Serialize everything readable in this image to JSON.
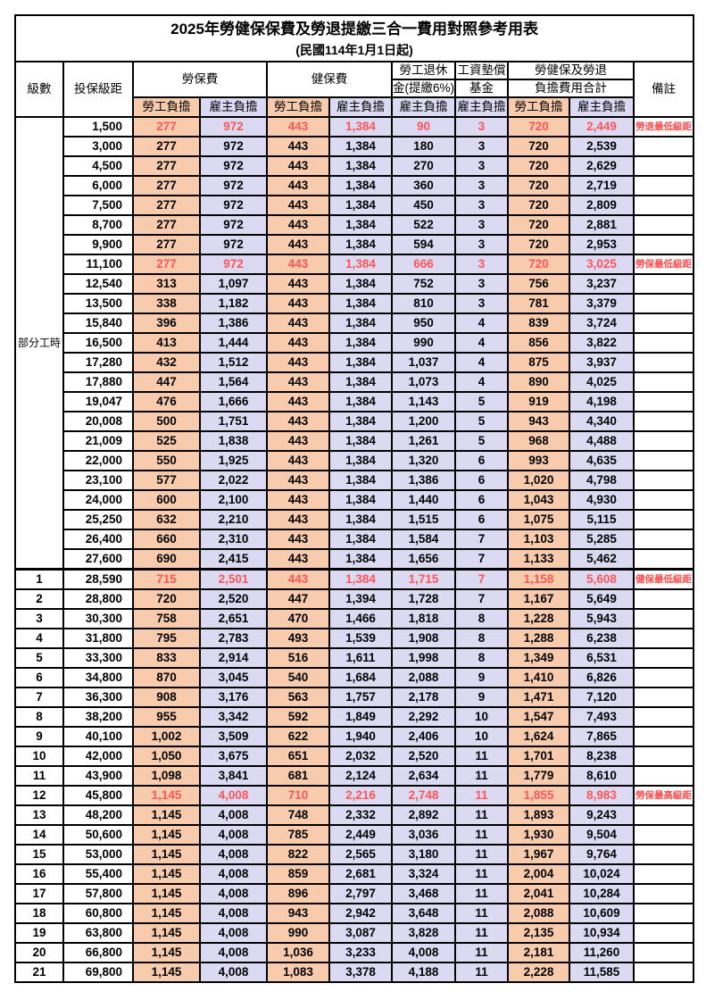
{
  "title": "2025年勞健保保費及勞退提繳三合一費用對照參考用表",
  "subtitle": "(民國114年1月1日起)",
  "colors": {
    "employee_col_bg": "#F8CBAD",
    "employer_col_bg": "#DCD9F2",
    "highlight_text": "#FF5555",
    "remark_text": "#FF4B4B",
    "grid_line": "#000000"
  },
  "header": {
    "grade": "級數",
    "bracket": "投保級距",
    "labor_insurance": "勞保費",
    "health_insurance": "健保費",
    "pension_line1": "勞工退休",
    "pension_line2": "金(提繳6%)",
    "wage_fund_line1": "工資墊償",
    "wage_fund_line2": "基金",
    "total_line1": "勞健保及勞退",
    "total_line2": "負擔費用合計",
    "remark": "備註",
    "employee_share": "勞工負擔",
    "employer_share": "雇主負擔"
  },
  "part_time_label": "部分工時",
  "part_time_rows": 23,
  "column_kinds": [
    "emp",
    "er",
    "emp",
    "er",
    "er",
    "er",
    "emp",
    "er"
  ],
  "rows": [
    {
      "grade": null,
      "bracket": "1,500",
      "values": [
        "277",
        "972",
        "443",
        "1,384",
        "90",
        "3",
        "720",
        "2,449"
      ],
      "remark": "勞退最低級距",
      "highlight": true
    },
    {
      "grade": null,
      "bracket": "3,000",
      "values": [
        "277",
        "972",
        "443",
        "1,384",
        "180",
        "3",
        "720",
        "2,539"
      ],
      "remark": "",
      "highlight": false
    },
    {
      "grade": null,
      "bracket": "4,500",
      "values": [
        "277",
        "972",
        "443",
        "1,384",
        "270",
        "3",
        "720",
        "2,629"
      ],
      "remark": "",
      "highlight": false
    },
    {
      "grade": null,
      "bracket": "6,000",
      "values": [
        "277",
        "972",
        "443",
        "1,384",
        "360",
        "3",
        "720",
        "2,719"
      ],
      "remark": "",
      "highlight": false
    },
    {
      "grade": null,
      "bracket": "7,500",
      "values": [
        "277",
        "972",
        "443",
        "1,384",
        "450",
        "3",
        "720",
        "2,809"
      ],
      "remark": "",
      "highlight": false
    },
    {
      "grade": null,
      "bracket": "8,700",
      "values": [
        "277",
        "972",
        "443",
        "1,384",
        "522",
        "3",
        "720",
        "2,881"
      ],
      "remark": "",
      "highlight": false
    },
    {
      "grade": null,
      "bracket": "9,900",
      "values": [
        "277",
        "972",
        "443",
        "1,384",
        "594",
        "3",
        "720",
        "2,953"
      ],
      "remark": "",
      "highlight": false
    },
    {
      "grade": null,
      "bracket": "11,100",
      "values": [
        "277",
        "972",
        "443",
        "1,384",
        "666",
        "3",
        "720",
        "3,025"
      ],
      "remark": "勞保最低級距",
      "highlight": true
    },
    {
      "grade": null,
      "bracket": "12,540",
      "values": [
        "313",
        "1,097",
        "443",
        "1,384",
        "752",
        "3",
        "756",
        "3,237"
      ],
      "remark": "",
      "highlight": false
    },
    {
      "grade": null,
      "bracket": "13,500",
      "values": [
        "338",
        "1,182",
        "443",
        "1,384",
        "810",
        "3",
        "781",
        "3,379"
      ],
      "remark": "",
      "highlight": false
    },
    {
      "grade": null,
      "bracket": "15,840",
      "values": [
        "396",
        "1,386",
        "443",
        "1,384",
        "950",
        "4",
        "839",
        "3,724"
      ],
      "remark": "",
      "highlight": false
    },
    {
      "grade": null,
      "bracket": "16,500",
      "values": [
        "413",
        "1,444",
        "443",
        "1,384",
        "990",
        "4",
        "856",
        "3,822"
      ],
      "remark": "",
      "highlight": false
    },
    {
      "grade": null,
      "bracket": "17,280",
      "values": [
        "432",
        "1,512",
        "443",
        "1,384",
        "1,037",
        "4",
        "875",
        "3,937"
      ],
      "remark": "",
      "highlight": false
    },
    {
      "grade": null,
      "bracket": "17,880",
      "values": [
        "447",
        "1,564",
        "443",
        "1,384",
        "1,073",
        "4",
        "890",
        "4,025"
      ],
      "remark": "",
      "highlight": false
    },
    {
      "grade": null,
      "bracket": "19,047",
      "values": [
        "476",
        "1,666",
        "443",
        "1,384",
        "1,143",
        "5",
        "919",
        "4,198"
      ],
      "remark": "",
      "highlight": false
    },
    {
      "grade": null,
      "bracket": "20,008",
      "values": [
        "500",
        "1,751",
        "443",
        "1,384",
        "1,200",
        "5",
        "943",
        "4,340"
      ],
      "remark": "",
      "highlight": false
    },
    {
      "grade": null,
      "bracket": "21,009",
      "values": [
        "525",
        "1,838",
        "443",
        "1,384",
        "1,261",
        "5",
        "968",
        "4,488"
      ],
      "remark": "",
      "highlight": false
    },
    {
      "grade": null,
      "bracket": "22,000",
      "values": [
        "550",
        "1,925",
        "443",
        "1,384",
        "1,320",
        "6",
        "993",
        "4,635"
      ],
      "remark": "",
      "highlight": false
    },
    {
      "grade": null,
      "bracket": "23,100",
      "values": [
        "577",
        "2,022",
        "443",
        "1,384",
        "1,386",
        "6",
        "1,020",
        "4,798"
      ],
      "remark": "",
      "highlight": false
    },
    {
      "grade": null,
      "bracket": "24,000",
      "values": [
        "600",
        "2,100",
        "443",
        "1,384",
        "1,440",
        "6",
        "1,043",
        "4,930"
      ],
      "remark": "",
      "highlight": false
    },
    {
      "grade": null,
      "bracket": "25,250",
      "values": [
        "632",
        "2,210",
        "443",
        "1,384",
        "1,515",
        "6",
        "1,075",
        "5,115"
      ],
      "remark": "",
      "highlight": false
    },
    {
      "grade": null,
      "bracket": "26,400",
      "values": [
        "660",
        "2,310",
        "443",
        "1,384",
        "1,584",
        "7",
        "1,103",
        "5,285"
      ],
      "remark": "",
      "highlight": false
    },
    {
      "grade": null,
      "bracket": "27,600",
      "values": [
        "690",
        "2,415",
        "443",
        "1,384",
        "1,656",
        "7",
        "1,133",
        "5,462"
      ],
      "remark": "",
      "highlight": false
    },
    {
      "grade": "1",
      "bracket": "28,590",
      "values": [
        "715",
        "2,501",
        "443",
        "1,384",
        "1,715",
        "7",
        "1,158",
        "5,608"
      ],
      "remark": "健保最低級距",
      "highlight": true,
      "section_start": true
    },
    {
      "grade": "2",
      "bracket": "28,800",
      "values": [
        "720",
        "2,520",
        "447",
        "1,394",
        "1,728",
        "7",
        "1,167",
        "5,649"
      ],
      "remark": "",
      "highlight": false
    },
    {
      "grade": "3",
      "bracket": "30,300",
      "values": [
        "758",
        "2,651",
        "470",
        "1,466",
        "1,818",
        "8",
        "1,228",
        "5,943"
      ],
      "remark": "",
      "highlight": false
    },
    {
      "grade": "4",
      "bracket": "31,800",
      "values": [
        "795",
        "2,783",
        "493",
        "1,539",
        "1,908",
        "8",
        "1,288",
        "6,238"
      ],
      "remark": "",
      "highlight": false
    },
    {
      "grade": "5",
      "bracket": "33,300",
      "values": [
        "833",
        "2,914",
        "516",
        "1,611",
        "1,998",
        "8",
        "1,349",
        "6,531"
      ],
      "remark": "",
      "highlight": false
    },
    {
      "grade": "6",
      "bracket": "34,800",
      "values": [
        "870",
        "3,045",
        "540",
        "1,684",
        "2,088",
        "9",
        "1,410",
        "6,826"
      ],
      "remark": "",
      "highlight": false
    },
    {
      "grade": "7",
      "bracket": "36,300",
      "values": [
        "908",
        "3,176",
        "563",
        "1,757",
        "2,178",
        "9",
        "1,471",
        "7,120"
      ],
      "remark": "",
      "highlight": false
    },
    {
      "grade": "8",
      "bracket": "38,200",
      "values": [
        "955",
        "3,342",
        "592",
        "1,849",
        "2,292",
        "10",
        "1,547",
        "7,493"
      ],
      "remark": "",
      "highlight": false
    },
    {
      "grade": "9",
      "bracket": "40,100",
      "values": [
        "1,002",
        "3,509",
        "622",
        "1,940",
        "2,406",
        "10",
        "1,624",
        "7,865"
      ],
      "remark": "",
      "highlight": false
    },
    {
      "grade": "10",
      "bracket": "42,000",
      "values": [
        "1,050",
        "3,675",
        "651",
        "2,032",
        "2,520",
        "11",
        "1,701",
        "8,238"
      ],
      "remark": "",
      "highlight": false
    },
    {
      "grade": "11",
      "bracket": "43,900",
      "values": [
        "1,098",
        "3,841",
        "681",
        "2,124",
        "2,634",
        "11",
        "1,779",
        "8,610"
      ],
      "remark": "",
      "highlight": false
    },
    {
      "grade": "12",
      "bracket": "45,800",
      "values": [
        "1,145",
        "4,008",
        "710",
        "2,216",
        "2,748",
        "11",
        "1,855",
        "8,983"
      ],
      "remark": "勞保最高級距",
      "highlight": true
    },
    {
      "grade": "13",
      "bracket": "48,200",
      "values": [
        "1,145",
        "4,008",
        "748",
        "2,332",
        "2,892",
        "11",
        "1,893",
        "9,243"
      ],
      "remark": "",
      "highlight": false
    },
    {
      "grade": "14",
      "bracket": "50,600",
      "values": [
        "1,145",
        "4,008",
        "785",
        "2,449",
        "3,036",
        "11",
        "1,930",
        "9,504"
      ],
      "remark": "",
      "highlight": false
    },
    {
      "grade": "15",
      "bracket": "53,000",
      "values": [
        "1,145",
        "4,008",
        "822",
        "2,565",
        "3,180",
        "11",
        "1,967",
        "9,764"
      ],
      "remark": "",
      "highlight": false
    },
    {
      "grade": "16",
      "bracket": "55,400",
      "values": [
        "1,145",
        "4,008",
        "859",
        "2,681",
        "3,324",
        "11",
        "2,004",
        "10,024"
      ],
      "remark": "",
      "highlight": false
    },
    {
      "grade": "17",
      "bracket": "57,800",
      "values": [
        "1,145",
        "4,008",
        "896",
        "2,797",
        "3,468",
        "11",
        "2,041",
        "10,284"
      ],
      "remark": "",
      "highlight": false
    },
    {
      "grade": "18",
      "bracket": "60,800",
      "values": [
        "1,145",
        "4,008",
        "943",
        "2,942",
        "3,648",
        "11",
        "2,088",
        "10,609"
      ],
      "remark": "",
      "highlight": false
    },
    {
      "grade": "19",
      "bracket": "63,800",
      "values": [
        "1,145",
        "4,008",
        "990",
        "3,087",
        "3,828",
        "11",
        "2,135",
        "10,934"
      ],
      "remark": "",
      "highlight": false
    },
    {
      "grade": "20",
      "bracket": "66,800",
      "values": [
        "1,145",
        "4,008",
        "1,036",
        "3,233",
        "4,008",
        "11",
        "2,181",
        "11,260"
      ],
      "remark": "",
      "highlight": false
    },
    {
      "grade": "21",
      "bracket": "69,800",
      "values": [
        "1,145",
        "4,008",
        "1,083",
        "3,378",
        "4,188",
        "11",
        "2,228",
        "11,585"
      ],
      "remark": "",
      "highlight": false
    }
  ]
}
